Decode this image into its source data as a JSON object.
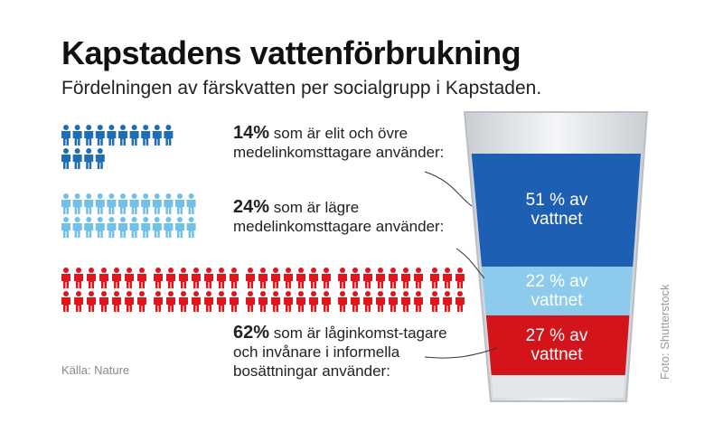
{
  "title": "Kapstadens vattenförbrukning",
  "subtitle": "Fördelningen av färskvatten per socialgrupp i Kapstaden.",
  "source": "Källa: Nature",
  "credit": "Foto: Shutterstock",
  "chart_data": [
    {
      "type": "pictograph",
      "categories": [
        "som är elit och övre medelinkomsttagare använder:",
        "som är lägre medelinkomsttagare använder:",
        "som är låginkomst-tagare och invånare i informella bosättningar använder:"
      ],
      "values": [
        14,
        24,
        62
      ],
      "value_labels": [
        "14%",
        "24%",
        "62%"
      ],
      "colors": [
        "#1f6db5",
        "#72bfe9",
        "#e0161c"
      ]
    },
    {
      "type": "glass",
      "values": [
        51,
        22,
        27
      ],
      "value_labels": [
        "51 % av vattnet",
        "22 % av vattnet",
        "27 % av vattnet"
      ],
      "colors": [
        "#1d5fb3",
        "#8ccbeb",
        "#d3141b"
      ]
    }
  ]
}
